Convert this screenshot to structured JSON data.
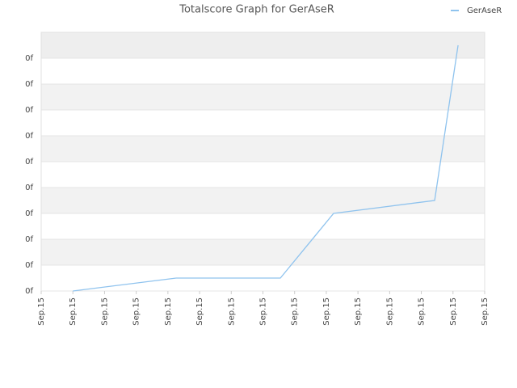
{
  "chart_data": {
    "type": "line",
    "title": "Totalscore Graph for GerAseR",
    "x": [
      1.0,
      4.26,
      7.55,
      9.23,
      12.42,
      13.16
    ],
    "series": [
      {
        "name": "GerAseR",
        "color": "#8fc3ee",
        "values": [
          0,
          0.5,
          0.5,
          3,
          3.5,
          9.5
        ]
      }
    ],
    "xlim": [
      0,
      14
    ],
    "xticks": [
      {
        "value": 0,
        "label": "Sep.15"
      },
      {
        "value": 1,
        "label": "Sep.15"
      },
      {
        "value": 2,
        "label": "Sep.15"
      },
      {
        "value": 3,
        "label": "Sep.15"
      },
      {
        "value": 4,
        "label": "Sep.15"
      },
      {
        "value": 5,
        "label": "Sep.15"
      },
      {
        "value": 6,
        "label": "Sep.15"
      },
      {
        "value": 7,
        "label": "Sep.15"
      },
      {
        "value": 8,
        "label": "Sep.15"
      },
      {
        "value": 9,
        "label": "Sep.15"
      },
      {
        "value": 10,
        "label": "Sep.15"
      },
      {
        "value": 11,
        "label": "Sep.15"
      },
      {
        "value": 12,
        "label": "Sep.15"
      },
      {
        "value": 13,
        "label": "Sep.15"
      },
      {
        "value": 14,
        "label": "Sep.15"
      }
    ],
    "ylim": [
      0,
      10
    ],
    "yticks": [
      {
        "value": 0,
        "label": "0f"
      },
      {
        "value": 1,
        "label": "0f"
      },
      {
        "value": 2,
        "label": "0f"
      },
      {
        "value": 3,
        "label": "0f"
      },
      {
        "value": 4,
        "label": "0f"
      },
      {
        "value": 5,
        "label": "0f"
      },
      {
        "value": 6,
        "label": "0f"
      },
      {
        "value": 7,
        "label": "0f"
      },
      {
        "value": 8,
        "label": "0f"
      },
      {
        "value": 9,
        "label": "0f"
      }
    ],
    "grid": true,
    "legend": "top-right"
  }
}
